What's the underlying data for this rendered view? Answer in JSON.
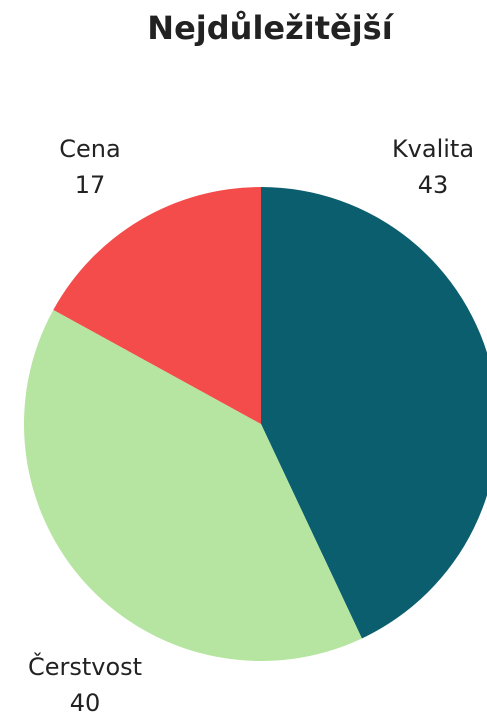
{
  "chart_data": {
    "type": "pie",
    "title": "Nejdůležitější",
    "categories": [
      "Kvalita",
      "Čerstvost",
      "Cena"
    ],
    "values": [
      43,
      40,
      17
    ],
    "colors": [
      "#0b5e6e",
      "#b5e5a0",
      "#f44b4b"
    ]
  }
}
